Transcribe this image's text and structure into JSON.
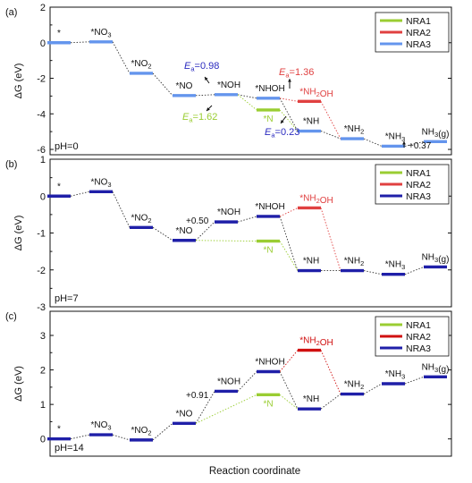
{
  "x_label": "Reaction coordinate",
  "chart_data": [
    {
      "type": "line",
      "panel_label": "(a)",
      "condition": "pH=0",
      "ylabel": "ΔG (eV)",
      "ylim": [
        -6.3,
        2.0
      ],
      "yticks": [
        -6,
        -4,
        -2,
        0,
        2
      ],
      "legend": [
        {
          "name": "NRA1",
          "color": "#9ACD32"
        },
        {
          "name": "NRA2",
          "color": "#E04040"
        },
        {
          "name": "NRA3",
          "color": "#6495ED"
        }
      ],
      "main_color": "#6495ED",
      "levels": [
        {
          "id": "s0",
          "slot": 0,
          "value": 0.0,
          "label": "*"
        },
        {
          "id": "no3",
          "slot": 1,
          "value": 0.05,
          "label": "*NO3"
        },
        {
          "id": "no2",
          "slot": 2,
          "value": -1.72,
          "label": "*NO2"
        },
        {
          "id": "no",
          "slot": 3,
          "value": -2.97,
          "label": "*NO"
        },
        {
          "id": "noh",
          "slot": 4,
          "value": -2.92,
          "label": "*NOH"
        },
        {
          "id": "nhoh",
          "slot": 5,
          "value": -3.12,
          "label": "*NHOH"
        },
        {
          "id": "n",
          "slot": 5,
          "value": -3.78,
          "label": "*N",
          "color": "#9ACD32"
        },
        {
          "id": "nh2oh",
          "slot": 6,
          "value": -3.3,
          "label": "*NH2OH",
          "color": "#E04040"
        },
        {
          "id": "nh",
          "slot": 6,
          "value": -4.97,
          "label": "*NH"
        },
        {
          "id": "nh2",
          "slot": 7,
          "value": -5.4,
          "label": "*NH2"
        },
        {
          "id": "nh3",
          "slot": 8,
          "value": -5.82,
          "label": "*NH3"
        },
        {
          "id": "nh3g",
          "slot": 9,
          "value": -5.56,
          "label": "NH3(g)"
        }
      ],
      "connectors": [
        [
          "s0",
          "no3",
          "#333333"
        ],
        [
          "no3",
          "no2",
          "#333333"
        ],
        [
          "no2",
          "no",
          "#333333"
        ],
        [
          "no",
          "noh",
          "#333333"
        ],
        [
          "noh",
          "nhoh",
          "#333333"
        ],
        [
          "nhoh",
          "nh",
          "#333333"
        ],
        [
          "nh",
          "nh2",
          "#333333"
        ],
        [
          "nh2",
          "nh3",
          "#333333"
        ],
        [
          "nh3",
          "nh3g",
          "#333333"
        ],
        [
          "noh",
          "n",
          "#9ACD32"
        ],
        [
          "n",
          "nh",
          "#9ACD32"
        ],
        [
          "nhoh",
          "nh2oh",
          "#E04040"
        ],
        [
          "nh2oh",
          "nh2",
          "#E04040"
        ]
      ],
      "annotations": [
        {
          "sym": "E",
          "sub": "a",
          "value": "=0.98",
          "color": "#2B2BBF"
        },
        {
          "sym": "E",
          "sub": "a",
          "value": "=1.36",
          "color": "#E04040"
        },
        {
          "sym": "E",
          "sub": "a",
          "value": "=1.62",
          "color": "#9ACD32"
        },
        {
          "sym": "E",
          "sub": "a",
          "value": "=0.23",
          "color": "#2B2BBF"
        },
        {
          "text": "+0.37",
          "color": "#111111"
        }
      ]
    },
    {
      "type": "line",
      "panel_label": "(b)",
      "condition": "pH=7",
      "ylabel": "ΔG (eV)",
      "ylim": [
        -3.0,
        1.0
      ],
      "yticks": [
        -3,
        -2,
        -1,
        0,
        1
      ],
      "legend": [
        {
          "name": "NRA1",
          "color": "#9ACD32"
        },
        {
          "name": "NRA2",
          "color": "#E04040"
        },
        {
          "name": "NRA3",
          "color": "#1F1FA8"
        }
      ],
      "main_color": "#1F1FA8",
      "levels": [
        {
          "id": "s0",
          "slot": 0,
          "value": 0.0,
          "label": "*"
        },
        {
          "id": "no3",
          "slot": 1,
          "value": 0.12,
          "label": "*NO3"
        },
        {
          "id": "no2",
          "slot": 2,
          "value": -0.85,
          "label": "*NO2"
        },
        {
          "id": "no",
          "slot": 3,
          "value": -1.2,
          "label": "*NO"
        },
        {
          "id": "noh",
          "slot": 4,
          "value": -0.7,
          "label": "*NOH"
        },
        {
          "id": "nhoh",
          "slot": 5,
          "value": -0.55,
          "label": "*NHOH"
        },
        {
          "id": "n",
          "slot": 5,
          "value": -1.22,
          "label": "*N",
          "color": "#9ACD32"
        },
        {
          "id": "nh2oh",
          "slot": 6,
          "value": -0.32,
          "label": "*NH2OH",
          "color": "#E04040"
        },
        {
          "id": "nh",
          "slot": 6,
          "value": -2.02,
          "label": "*NH"
        },
        {
          "id": "nh2",
          "slot": 7,
          "value": -2.02,
          "label": "*NH2"
        },
        {
          "id": "nh3",
          "slot": 8,
          "value": -2.12,
          "label": "*NH3"
        },
        {
          "id": "nh3g",
          "slot": 9,
          "value": -1.92,
          "label": "NH3(g)"
        }
      ],
      "connectors": [
        [
          "s0",
          "no3",
          "#333333"
        ],
        [
          "no3",
          "no2",
          "#333333"
        ],
        [
          "no2",
          "no",
          "#333333"
        ],
        [
          "no",
          "noh",
          "#333333"
        ],
        [
          "noh",
          "nhoh",
          "#333333"
        ],
        [
          "nhoh",
          "nh",
          "#333333"
        ],
        [
          "nh",
          "nh2",
          "#333333"
        ],
        [
          "nh2",
          "nh3",
          "#333333"
        ],
        [
          "nh3",
          "nh3g",
          "#333333"
        ],
        [
          "no",
          "n",
          "#9ACD32"
        ],
        [
          "n",
          "nh",
          "#9ACD32"
        ],
        [
          "nhoh",
          "nh2oh",
          "#E04040"
        ],
        [
          "nh2oh",
          "nh2",
          "#E04040"
        ]
      ],
      "annotations": [
        {
          "text": "+0.50",
          "color": "#111111"
        }
      ]
    },
    {
      "type": "line",
      "panel_label": "(c)",
      "condition": "pH=14",
      "ylabel": "ΔG (eV)",
      "ylim": [
        -0.5,
        3.7
      ],
      "yticks": [
        0,
        1,
        2,
        3
      ],
      "legend": [
        {
          "name": "NRA1",
          "color": "#9ACD32"
        },
        {
          "name": "NRA2",
          "color": "#D01010"
        },
        {
          "name": "NRA3",
          "color": "#1F1FA8"
        }
      ],
      "main_color": "#1F1FA8",
      "levels": [
        {
          "id": "s0",
          "slot": 0,
          "value": 0.0,
          "label": "*"
        },
        {
          "id": "no3",
          "slot": 1,
          "value": 0.12,
          "label": "*NO3"
        },
        {
          "id": "no2",
          "slot": 2,
          "value": -0.03,
          "label": "*NO2"
        },
        {
          "id": "no",
          "slot": 3,
          "value": 0.45,
          "label": "*NO"
        },
        {
          "id": "noh",
          "slot": 4,
          "value": 1.38,
          "label": "*NOH"
        },
        {
          "id": "nhoh",
          "slot": 5,
          "value": 1.95,
          "label": "*NHOH"
        },
        {
          "id": "n",
          "slot": 5,
          "value": 1.28,
          "label": "*N",
          "color": "#9ACD32"
        },
        {
          "id": "nh2oh",
          "slot": 6,
          "value": 2.57,
          "label": "*NH2OH",
          "color": "#D01010"
        },
        {
          "id": "nh",
          "slot": 6,
          "value": 0.87,
          "label": "*NH"
        },
        {
          "id": "nh2",
          "slot": 7,
          "value": 1.3,
          "label": "*NH2"
        },
        {
          "id": "nh3",
          "slot": 8,
          "value": 1.6,
          "label": "*NH3"
        },
        {
          "id": "nh3g",
          "slot": 9,
          "value": 1.8,
          "label": "NH3(g)"
        }
      ],
      "connectors": [
        [
          "s0",
          "no3",
          "#333333"
        ],
        [
          "no3",
          "no2",
          "#333333"
        ],
        [
          "no2",
          "no",
          "#333333"
        ],
        [
          "no",
          "noh",
          "#333333"
        ],
        [
          "noh",
          "nhoh",
          "#333333"
        ],
        [
          "nhoh",
          "nh",
          "#333333"
        ],
        [
          "nh",
          "nh2",
          "#333333"
        ],
        [
          "nh2",
          "nh3",
          "#333333"
        ],
        [
          "nh3",
          "nh3g",
          "#333333"
        ],
        [
          "no",
          "n",
          "#9ACD32"
        ],
        [
          "n",
          "nh",
          "#9ACD32"
        ],
        [
          "nhoh",
          "nh2oh",
          "#D01010"
        ],
        [
          "nh2oh",
          "nh2",
          "#D01010"
        ]
      ],
      "annotations": [
        {
          "text": "+0.91",
          "color": "#111111"
        }
      ]
    }
  ]
}
